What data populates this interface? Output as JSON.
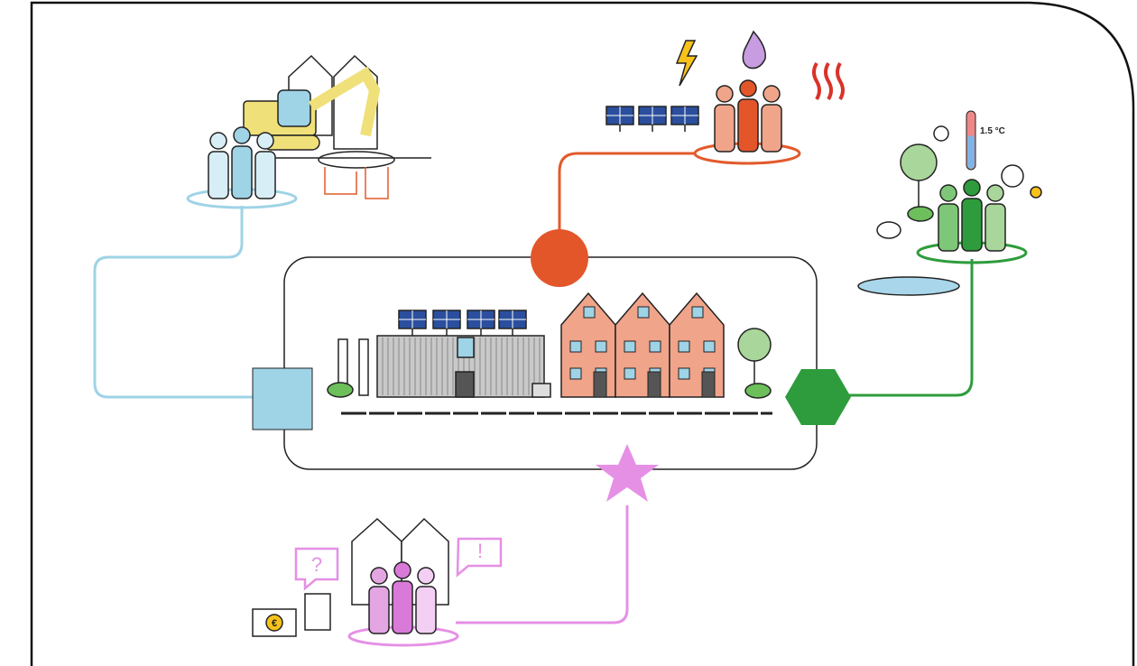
{
  "labels": {
    "question": "?",
    "exclamation": "!",
    "temperature": "1.5 °C",
    "currency": "€"
  }
}
